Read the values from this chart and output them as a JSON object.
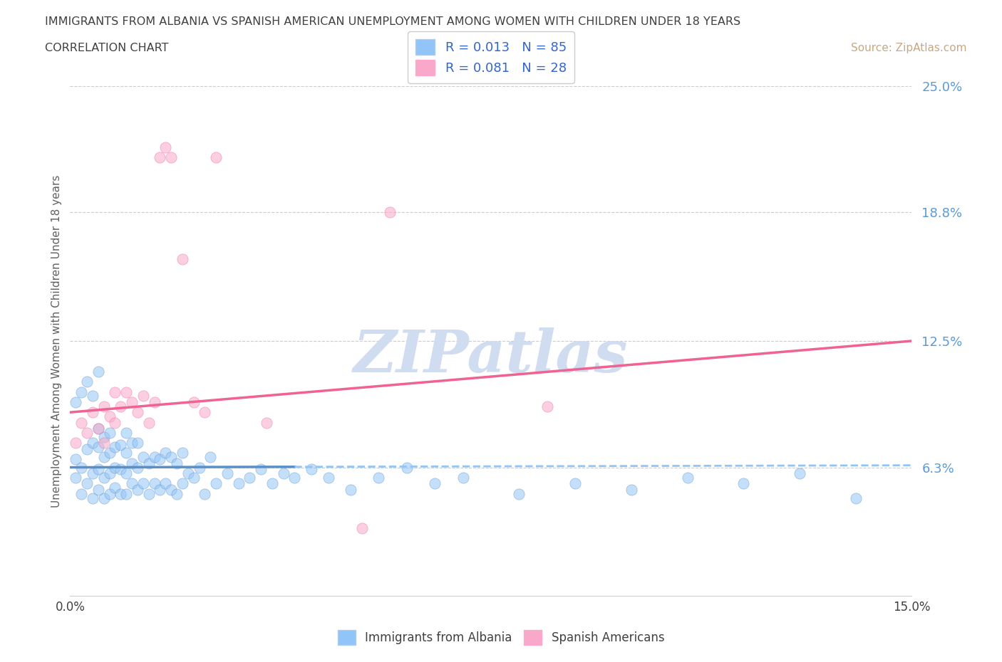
{
  "title_line1": "IMMIGRANTS FROM ALBANIA VS SPANISH AMERICAN UNEMPLOYMENT AMONG WOMEN WITH CHILDREN UNDER 18 YEARS",
  "title_line2": "CORRELATION CHART",
  "source": "Source: ZipAtlas.com",
  "ylabel_text": "Unemployment Among Women with Children Under 18 years",
  "xlim": [
    0.0,
    0.15
  ],
  "ylim": [
    0.0,
    0.25
  ],
  "xtick_vals": [
    0.0,
    0.15
  ],
  "xtick_labels": [
    "0.0%",
    "15.0%"
  ],
  "ytick_positions": [
    0.063,
    0.125,
    0.188,
    0.25
  ],
  "ytick_labels": [
    "6.3%",
    "12.5%",
    "18.8%",
    "25.0%"
  ],
  "color_albania": "#92C5F7",
  "color_spanish": "#F9A8C9",
  "color_line_albania_solid": "#5B8FC7",
  "color_line_albania_dash": "#92C5F7",
  "color_line_spanish": "#F06292",
  "color_ytick_labels": "#5B9BD5",
  "color_title": "#404040",
  "color_source": "#C8A882",
  "color_grid": "#CCCCCC",
  "background_color": "#FFFFFF",
  "watermark_text": "ZIPatlas",
  "watermark_color": "#D0DCF0",
  "watermark_fontsize": 60,
  "legend_color_text": "#3366CC",
  "scatter_size": 120,
  "scatter_alpha": 0.55,
  "trendline_albania_x0": 0.0,
  "trendline_albania_x_break": 0.04,
  "trendline_albania_x1": 0.15,
  "trendline_albania_y0": 0.063,
  "trendline_albania_y1": 0.064,
  "trendline_spanish_x0": 0.0,
  "trendline_spanish_x1": 0.15,
  "trendline_spanish_y0": 0.09,
  "trendline_spanish_y1": 0.125,
  "alb_x": [
    0.001,
    0.001,
    0.002,
    0.002,
    0.003,
    0.003,
    0.004,
    0.004,
    0.004,
    0.005,
    0.005,
    0.005,
    0.005,
    0.006,
    0.006,
    0.006,
    0.006,
    0.007,
    0.007,
    0.007,
    0.007,
    0.008,
    0.008,
    0.008,
    0.009,
    0.009,
    0.009,
    0.01,
    0.01,
    0.01,
    0.01,
    0.011,
    0.011,
    0.011,
    0.012,
    0.012,
    0.012,
    0.013,
    0.013,
    0.014,
    0.014,
    0.015,
    0.015,
    0.016,
    0.016,
    0.017,
    0.017,
    0.018,
    0.018,
    0.019,
    0.019,
    0.02,
    0.02,
    0.021,
    0.022,
    0.023,
    0.024,
    0.025,
    0.026,
    0.028,
    0.03,
    0.032,
    0.034,
    0.036,
    0.038,
    0.04,
    0.043,
    0.046,
    0.05,
    0.055,
    0.06,
    0.065,
    0.07,
    0.08,
    0.09,
    0.1,
    0.11,
    0.12,
    0.13,
    0.14,
    0.001,
    0.002,
    0.003,
    0.004,
    0.005
  ],
  "alb_y": [
    0.058,
    0.067,
    0.05,
    0.063,
    0.055,
    0.072,
    0.048,
    0.06,
    0.075,
    0.052,
    0.062,
    0.073,
    0.082,
    0.048,
    0.058,
    0.068,
    0.078,
    0.05,
    0.06,
    0.07,
    0.08,
    0.053,
    0.063,
    0.073,
    0.05,
    0.062,
    0.074,
    0.05,
    0.06,
    0.07,
    0.08,
    0.055,
    0.065,
    0.075,
    0.052,
    0.063,
    0.075,
    0.055,
    0.068,
    0.05,
    0.065,
    0.055,
    0.068,
    0.052,
    0.067,
    0.055,
    0.07,
    0.052,
    0.068,
    0.05,
    0.065,
    0.055,
    0.07,
    0.06,
    0.058,
    0.063,
    0.05,
    0.068,
    0.055,
    0.06,
    0.055,
    0.058,
    0.062,
    0.055,
    0.06,
    0.058,
    0.062,
    0.058,
    0.052,
    0.058,
    0.063,
    0.055,
    0.058,
    0.05,
    0.055,
    0.052,
    0.058,
    0.055,
    0.06,
    0.048,
    0.095,
    0.1,
    0.105,
    0.098,
    0.11
  ],
  "spa_x": [
    0.001,
    0.002,
    0.003,
    0.004,
    0.005,
    0.006,
    0.006,
    0.007,
    0.008,
    0.008,
    0.009,
    0.01,
    0.011,
    0.012,
    0.013,
    0.014,
    0.015,
    0.016,
    0.017,
    0.018,
    0.02,
    0.022,
    0.024,
    0.026,
    0.035,
    0.052,
    0.085,
    0.057
  ],
  "spa_y": [
    0.075,
    0.085,
    0.08,
    0.09,
    0.082,
    0.093,
    0.075,
    0.088,
    0.1,
    0.085,
    0.093,
    0.1,
    0.095,
    0.09,
    0.098,
    0.085,
    0.095,
    0.215,
    0.22,
    0.215,
    0.165,
    0.095,
    0.09,
    0.215,
    0.085,
    0.033,
    0.093,
    0.188
  ]
}
